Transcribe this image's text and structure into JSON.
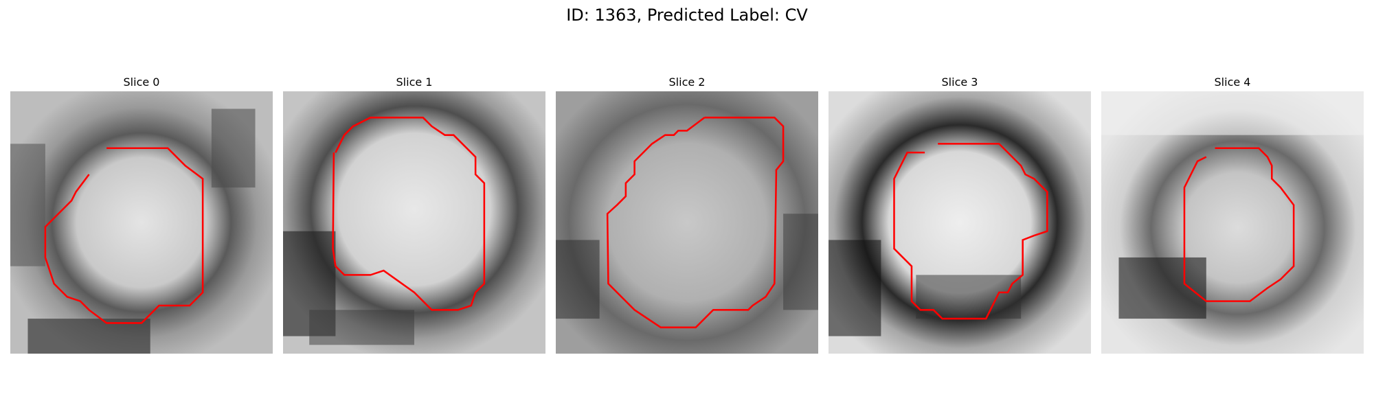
{
  "figure": {
    "title": "ID: 1363, Predicted Label: CV"
  },
  "panels": [
    {
      "title": "Slice 0"
    },
    {
      "title": "Slice 1"
    },
    {
      "title": "Slice 2"
    },
    {
      "title": "Slice 3"
    },
    {
      "title": "Slice 4"
    }
  ],
  "colors": {
    "contour": "#ff0000",
    "background": "#ffffff"
  }
}
